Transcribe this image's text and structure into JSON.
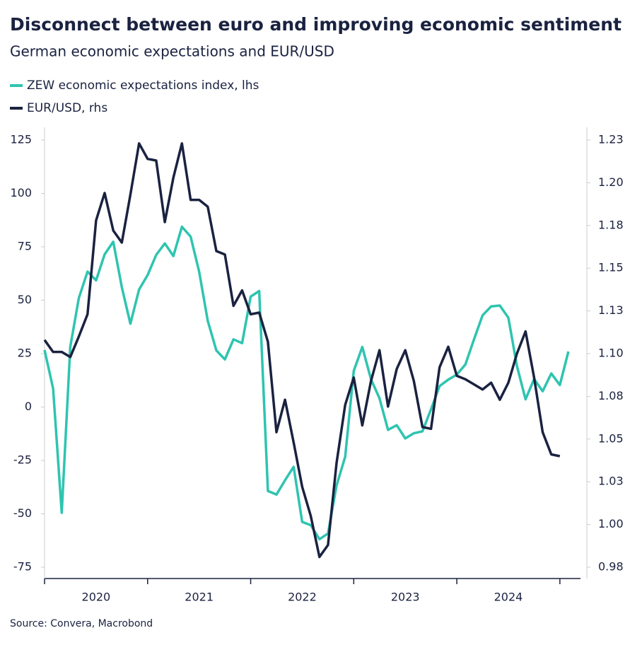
{
  "chart_data": {
    "type": "line",
    "title": "Disconnect between euro and improving economic sentiment",
    "subtitle": "German economic expectations and EUR/USD",
    "source": "Source: Convera, Macrobond",
    "x": [
      2020,
      2020.083,
      2020.167,
      2020.25,
      2020.333,
      2020.417,
      2020.5,
      2020.583,
      2020.667,
      2020.75,
      2020.833,
      2020.917,
      2021,
      2021.083,
      2021.167,
      2021.25,
      2021.333,
      2021.417,
      2021.5,
      2021.583,
      2021.667,
      2021.75,
      2021.833,
      2021.917,
      2022,
      2022.083,
      2022.167,
      2022.25,
      2022.333,
      2022.417,
      2022.5,
      2022.583,
      2022.667,
      2022.75,
      2022.833,
      2022.917,
      2023,
      2023.083,
      2023.167,
      2023.25,
      2023.333,
      2023.417,
      2023.5,
      2023.583,
      2023.667,
      2023.75,
      2023.833,
      2023.917,
      2024,
      2024.083,
      2024.167,
      2024.25,
      2024.333,
      2024.417,
      2024.5,
      2024.583,
      2024.667,
      2024.75,
      2024.833,
      2024.917,
      2025,
      2025.083
    ],
    "series": [
      {
        "name": "ZEW economic expectations index, lhs",
        "color": "#2ec4b0",
        "values": [
          26.7,
          8.7,
          -49.5,
          28.2,
          51.0,
          63.4,
          59.3,
          71.5,
          77.4,
          56.1,
          39.0,
          55.0,
          61.8,
          71.2,
          76.6,
          70.7,
          84.4,
          79.8,
          63.3,
          40.4,
          26.5,
          22.3,
          31.7,
          29.9,
          51.7,
          54.3,
          -39.3,
          -41.0,
          -34.3,
          -28.0,
          -53.8,
          -55.3,
          -61.9,
          -59.2,
          -36.7,
          -23.3,
          16.9,
          28.1,
          13.0,
          4.1,
          -10.7,
          -8.5,
          -14.7,
          -12.3,
          -11.4,
          -1.1,
          9.8,
          12.8,
          15.2,
          19.9,
          31.7,
          42.9,
          47.1,
          47.5,
          41.8,
          19.2,
          3.6,
          13.1,
          7.4,
          15.7,
          10.3,
          26.0
        ]
      },
      {
        "name": "EUR/USD, rhs",
        "color": "#1a2240",
        "axis": "y2",
        "values": [
          1.108,
          1.101,
          1.101,
          1.098,
          1.11,
          1.123,
          1.178,
          1.194,
          1.172,
          1.165,
          1.193,
          1.223,
          1.214,
          1.213,
          1.177,
          1.203,
          1.223,
          1.19,
          1.19,
          1.186,
          1.16,
          1.158,
          1.128,
          1.137,
          1.123,
          1.124,
          1.107,
          1.054,
          1.073,
          1.048,
          1.022,
          1.005,
          0.981,
          0.988,
          1.036,
          1.07,
          1.086,
          1.058,
          1.084,
          1.102,
          1.069,
          1.091,
          1.102,
          1.084,
          1.057,
          1.056,
          1.092,
          1.104,
          1.087,
          1.085,
          1.082,
          1.079,
          1.083,
          1.073,
          1.083,
          1.1,
          1.113,
          1.086,
          1.054,
          1.041,
          1.04,
          null
        ]
      }
    ],
    "xlim": [
      2020,
      2025.2
    ],
    "xticks": [
      2020,
      2021,
      2022,
      2023,
      2024,
      2025
    ],
    "ylim": [
      -75,
      125
    ],
    "yticks": [
      -75,
      -50,
      -25,
      0,
      25,
      50,
      75,
      100,
      125
    ],
    "y2lim": [
      0.975,
      1.225
    ],
    "y2ticks": [
      {
        "value": 0.975,
        "label": "0.98"
      },
      {
        "value": 1.0,
        "label": "1.00"
      },
      {
        "value": 1.025,
        "label": "1.03"
      },
      {
        "value": 1.05,
        "label": "1.05"
      },
      {
        "value": 1.075,
        "label": "1.08"
      },
      {
        "value": 1.1,
        "label": "1.10"
      },
      {
        "value": 1.125,
        "label": "1.13"
      },
      {
        "value": 1.15,
        "label": "1.15"
      },
      {
        "value": 1.175,
        "label": "1.18"
      },
      {
        "value": 1.2,
        "label": "1.20"
      },
      {
        "value": 1.225,
        "label": "1.23"
      }
    ],
    "grid": false,
    "legend": "top-left"
  }
}
